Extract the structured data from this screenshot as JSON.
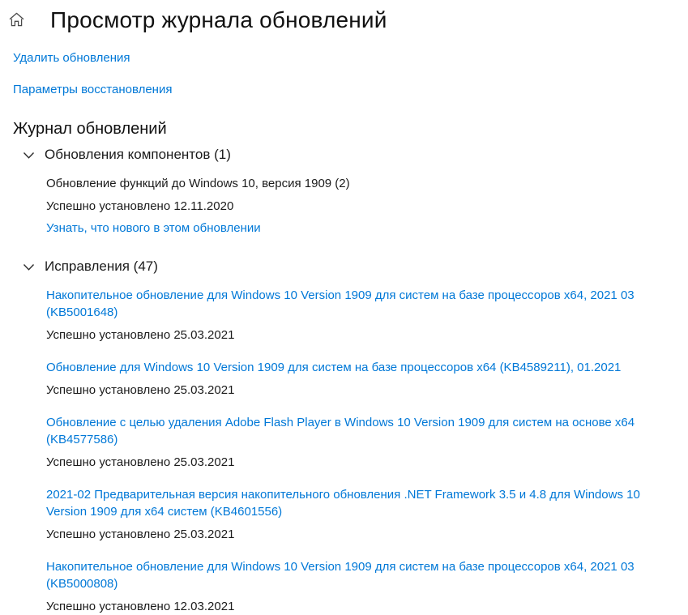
{
  "page": {
    "title": "Просмотр журнала обновлений"
  },
  "colors": {
    "link": "#0078d7",
    "text": "#1b1b1b"
  },
  "icons": {
    "home": "home-icon",
    "section_chevron": "chevron-down-icon"
  },
  "action_links": {
    "uninstall": "Удалить обновления",
    "recovery": "Параметры восстановления"
  },
  "history": {
    "heading": "Журнал обновлений",
    "sections": [
      {
        "label": "Обновления компонентов (1)",
        "items": [
          {
            "title": "Обновление функций до Windows 10, версия 1909 (2)",
            "title_is_link": false,
            "status": "Успешно установлено 12.11.2020",
            "link": "Узнать, что нового в этом обновлении"
          }
        ]
      },
      {
        "label": "Исправления (47)",
        "items": [
          {
            "title": "Накопительное обновление для Windows 10 Version 1909 для систем на базе процессоров x64, 2021 03 (KB5001648)",
            "title_is_link": true,
            "status": "Успешно установлено 25.03.2021"
          },
          {
            "title": "Обновление для Windows 10 Version 1909 для систем на базе процессоров x64 (KB4589211), 01.2021",
            "title_is_link": true,
            "status": "Успешно установлено 25.03.2021"
          },
          {
            "title": "Обновление с целью удаления Adobe Flash Player в Windows 10 Version 1909 для систем на основе x64 (KB4577586)",
            "title_is_link": true,
            "status": "Успешно установлено 25.03.2021"
          },
          {
            "title": "2021-02 Предварительная версия накопительного обновления .NET Framework 3.5 и 4.8 для Windows 10 Version 1909 для x64 систем (KB4601556)",
            "title_is_link": true,
            "status": "Успешно установлено 25.03.2021"
          },
          {
            "title": "Накопительное обновление для Windows 10 Version 1909 для систем на базе процессоров x64, 2021 03 (KB5000808)",
            "title_is_link": true,
            "status": "Успешно установлено 12.03.2021"
          }
        ]
      }
    ]
  }
}
